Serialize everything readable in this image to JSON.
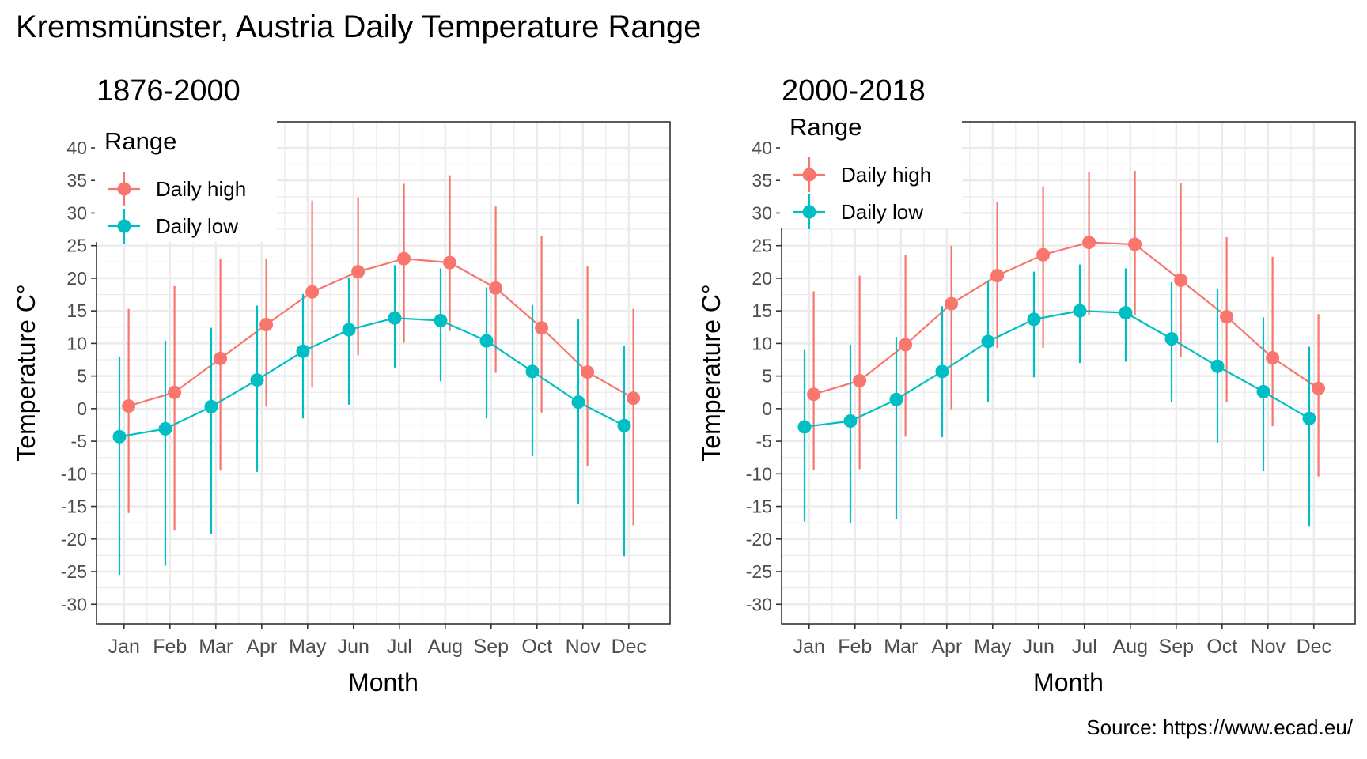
{
  "title": "Kremsmünster, Austria Daily Temperature Range",
  "caption": "Source: https://www.ecad.eu/",
  "colors": {
    "high": "#F8766D",
    "low": "#00BFC4",
    "grid": "#EBEBEB",
    "border": "#333333",
    "tick_text": "#4D4D4D"
  },
  "chart_data": [
    {
      "type": "line",
      "title": "1876-2000",
      "xlabel": "Month",
      "ylabel": "Temperature C°",
      "categories": [
        "Jan",
        "Feb",
        "Mar",
        "Apr",
        "May",
        "Jun",
        "Jul",
        "Aug",
        "Sep",
        "Oct",
        "Nov",
        "Dec"
      ],
      "ylim": [
        -33,
        44
      ],
      "yticks": [
        -30,
        -25,
        -20,
        -15,
        -10,
        -5,
        0,
        5,
        10,
        15,
        20,
        25,
        30,
        35,
        40
      ],
      "grid": true,
      "legend": {
        "title": "Range",
        "position": "top-left"
      },
      "series": [
        {
          "name": "Daily high",
          "color": "#F8766D",
          "values": [
            0.4,
            2.5,
            7.7,
            12.9,
            17.9,
            21.0,
            23.0,
            22.4,
            18.5,
            12.4,
            5.6,
            1.6
          ],
          "max": [
            15.3,
            18.8,
            23.0,
            23.0,
            31.9,
            32.4,
            34.5,
            35.8,
            31.0,
            26.5,
            21.8,
            15.3
          ],
          "min": [
            -16.0,
            -18.6,
            -9.5,
            0.3,
            3.2,
            8.2,
            10.1,
            11.9,
            5.5,
            -0.6,
            -8.8,
            -17.9
          ]
        },
        {
          "name": "Daily low",
          "color": "#00BFC4",
          "values": [
            -4.3,
            -3.1,
            0.3,
            4.4,
            8.8,
            12.1,
            13.9,
            13.5,
            10.4,
            5.7,
            1.0,
            -2.6
          ],
          "max": [
            8.0,
            10.4,
            12.4,
            15.8,
            17.6,
            20.0,
            22.0,
            21.5,
            18.6,
            15.9,
            13.7,
            9.7
          ],
          "min": [
            -25.5,
            -24.1,
            -19.3,
            -9.7,
            -1.5,
            0.6,
            6.3,
            4.2,
            -1.5,
            -7.3,
            -14.6,
            -22.6
          ]
        }
      ]
    },
    {
      "type": "line",
      "title": "2000-2018",
      "xlabel": "Month",
      "ylabel": "Temperature C°",
      "categories": [
        "Jan",
        "Feb",
        "Mar",
        "Apr",
        "May",
        "Jun",
        "Jul",
        "Aug",
        "Sep",
        "Oct",
        "Nov",
        "Dec"
      ],
      "ylim": [
        -33,
        44
      ],
      "yticks": [
        -30,
        -25,
        -20,
        -15,
        -10,
        -5,
        0,
        5,
        10,
        15,
        20,
        25,
        30,
        35,
        40
      ],
      "grid": true,
      "legend": {
        "title": "Range",
        "position": "top-left"
      },
      "series": [
        {
          "name": "Daily high",
          "color": "#F8766D",
          "values": [
            2.2,
            4.3,
            9.8,
            16.1,
            20.4,
            23.6,
            25.5,
            25.2,
            19.7,
            14.1,
            7.8,
            3.1
          ],
          "max": [
            18.0,
            20.4,
            23.6,
            25.0,
            31.7,
            34.1,
            36.3,
            36.5,
            34.6,
            26.3,
            23.3,
            14.5
          ],
          "min": [
            -9.4,
            -9.3,
            -4.3,
            -0.1,
            9.3,
            9.3,
            14.3,
            14.3,
            7.9,
            1.0,
            -2.7,
            -10.4
          ]
        },
        {
          "name": "Daily low",
          "color": "#00BFC4",
          "values": [
            -2.8,
            -1.9,
            1.4,
            5.7,
            10.3,
            13.7,
            15.0,
            14.7,
            10.7,
            6.5,
            2.6,
            -1.5
          ],
          "max": [
            9.0,
            9.8,
            11.0,
            15.7,
            19.6,
            21.0,
            22.1,
            21.5,
            19.4,
            18.3,
            14.0,
            9.5
          ],
          "min": [
            -17.3,
            -17.6,
            -17.0,
            -4.4,
            1.0,
            4.8,
            7.0,
            7.2,
            1.0,
            -5.2,
            -9.6,
            -18.0
          ]
        }
      ]
    }
  ]
}
